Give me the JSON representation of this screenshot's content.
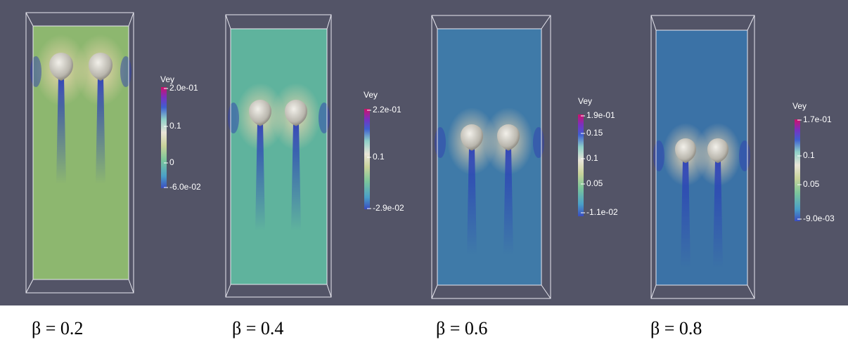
{
  "panels": [
    {
      "colorbar": {
        "title": "Vey",
        "ticks": [
          "2.0e-01",
          "0.1",
          "0",
          "-6.0e-02"
        ]
      },
      "caption": "β = 0.2"
    },
    {
      "colorbar": {
        "title": "Vey",
        "ticks": [
          "2.2e-01",
          "0.1",
          "-2.9e-02"
        ]
      },
      "caption": "β = 0.4"
    },
    {
      "colorbar": {
        "title": "Vey",
        "ticks": [
          "1.9e-01",
          "0.15",
          "0.1",
          "0.05",
          "-1.1e-02"
        ]
      },
      "caption": "β = 0.6"
    },
    {
      "colorbar": {
        "title": "Vey",
        "ticks": [
          "1.7e-01",
          "0.1",
          "0.05",
          "-9.0e-03"
        ]
      },
      "caption": "β = 0.8"
    }
  ]
}
